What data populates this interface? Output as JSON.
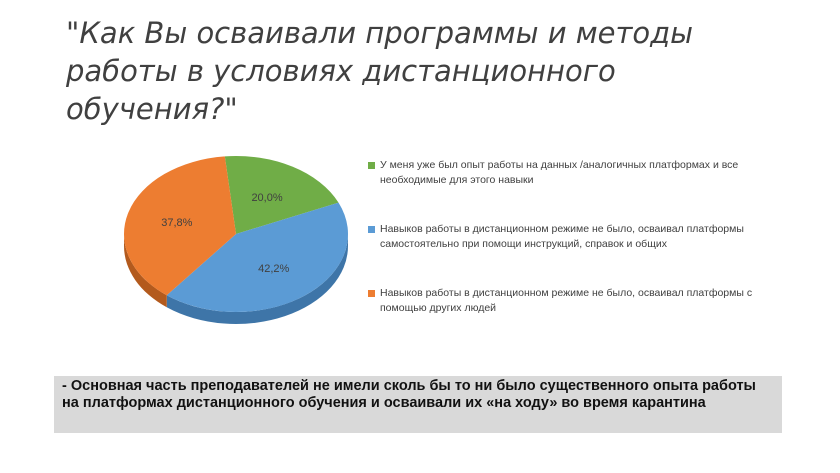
{
  "title": "\"Как Вы осваивали программы и методы работы в условиях дистанционного обучения?\"",
  "note": "- Основная часть преподавателей не имели сколь бы то ни было существенного опыта работы на платформах дистанционного обучения и осваивали их «на ходу» во время карантина",
  "chart_data": {
    "type": "pie",
    "title": "\"Как Вы осваивали программы и методы работы в условиях дистанционного обучения?\"",
    "legend_position": "right",
    "slices": [
      {
        "label": "У меня уже был опыт работы на данных /аналогичных платформах и все необходимые для этого навыки",
        "value": 20.0,
        "display": "20,0%",
        "color": "#70ad47",
        "dark": "#4e7a30"
      },
      {
        "label": "Навыков работы в дистанционном режиме не было, осваивал платформы самостоятельно при помощи инструкций, справок и общих",
        "value": 42.2,
        "display": "42,2%",
        "color": "#5b9bd5",
        "dark": "#3e75a8"
      },
      {
        "label": "Навыков работы в дистанционном режиме не было, осваивал платформы с помощью других людей",
        "value": 37.8,
        "display": "37,8%",
        "color": "#ed7d31",
        "dark": "#b35a1d"
      }
    ]
  }
}
